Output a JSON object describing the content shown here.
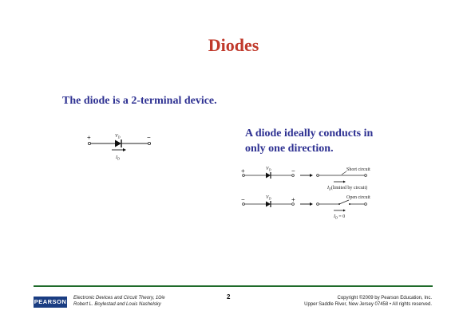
{
  "slide": {
    "title": "Diodes",
    "subtitle": "The diode is a 2-terminal device.",
    "ideal_lines": [
      "A diode ideally conducts in",
      "only one direction."
    ]
  },
  "figure_main": {
    "plus": "+",
    "minus": "−",
    "vd": "V",
    "vd_sub": "D",
    "id": "I",
    "id_sub": "D"
  },
  "figure_forward": {
    "plus": "+",
    "minus": "−",
    "vd": "V",
    "vd_sub": "D",
    "label_top": "Short circuit",
    "label_bottom": "(limited by circuit)",
    "id": "I",
    "id_sub": "D"
  },
  "figure_reverse": {
    "plus": "+",
    "minus": "−",
    "vd": "V",
    "vd_sub": "D",
    "label_top": "Open circuit",
    "id": "I",
    "id_sub": "D",
    "id_value": " = 0"
  },
  "footer": {
    "logo": "PEARSON",
    "book_line1": "Electronic Devices and Circuit Theory, 10/e",
    "book_line2": "Robert L. Boylestad and Louis Nashelsky",
    "page": "2",
    "copy_line1": "Copyright ©2009 by Pearson Education, Inc.",
    "copy_line2": "Upper Saddle River, New Jersey 07458 • All rights reserved."
  },
  "colors": {
    "title": "#c0392b",
    "body_text": "#2e3192",
    "footer_rule": "#1f6b2a",
    "logo_bg": "#1a3d82"
  }
}
